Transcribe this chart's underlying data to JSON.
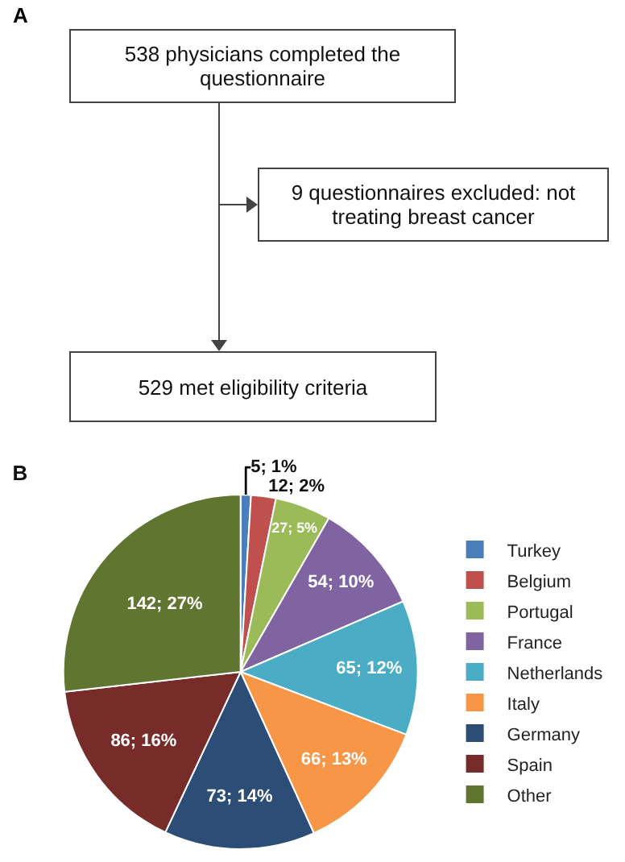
{
  "chart_data": [
    {
      "type": "other",
      "title": "A",
      "annotations": [
        "538 physicians completed the questionnaire",
        "9 questionnaires excluded: not treating breast cancer",
        "529 met eligibility criteria"
      ]
    },
    {
      "type": "pie",
      "title": "B",
      "categories": [
        "Turkey",
        "Belgium",
        "Portugal",
        "France",
        "Netherlands",
        "Italy",
        "Germany",
        "Spain",
        "Other"
      ],
      "values": [
        5,
        12,
        27,
        54,
        65,
        66,
        73,
        86,
        142
      ],
      "colors": [
        "#4a7ebb",
        "#c0504d",
        "#9bbb59",
        "#8064a2",
        "#4bacc6",
        "#f79646",
        "#2c4d75",
        "#772c2a",
        "#5f7530"
      ],
      "value_labels": [
        "5; 1%",
        "12; 2%",
        "27; 5%",
        "54; 10%",
        "65; 12%",
        "66; 13%",
        "73; 14%",
        "86; 16%",
        "142; 27%"
      ],
      "legend": "right"
    }
  ]
}
